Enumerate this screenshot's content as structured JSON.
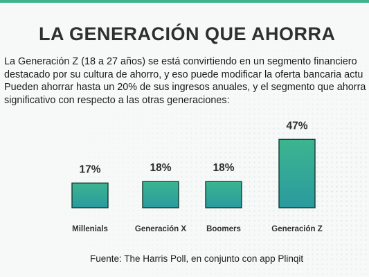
{
  "header": {
    "title": "LA GENERACIÓN QUE AHORRA"
  },
  "intro": {
    "lines": [
      "La Generación Z (18 a 27 años) se está convirtiendo en un segmento financiero",
      "destacado por su cultura de ahorro, y eso puede modificar la oferta bancaria actu",
      "Pueden ahorrar hasta un 20% de sus ingresos anuales, y el segmento que ahorra",
      "significativo con respecto a las otras generaciones:"
    ]
  },
  "chart_data": {
    "type": "bar",
    "title": "",
    "xlabel": "",
    "ylabel": "",
    "categories": [
      "Millenials",
      "Generación X",
      "Boomers",
      "Generación Z"
    ],
    "values": [
      17,
      18,
      18,
      47
    ],
    "value_labels": [
      "17%",
      "18%",
      "18%",
      "47%"
    ],
    "ylim": [
      0,
      50
    ],
    "grid": false,
    "legend": "none",
    "colors": {
      "bar_top": "#3cb58f",
      "bar_bottom": "#2a9a9f",
      "bar_outline": "#123c2e",
      "label_text": "#2f2f2f"
    }
  },
  "footer": {
    "source": "Fuente: The Harris Poll, en conjunto con app Plinqit"
  }
}
